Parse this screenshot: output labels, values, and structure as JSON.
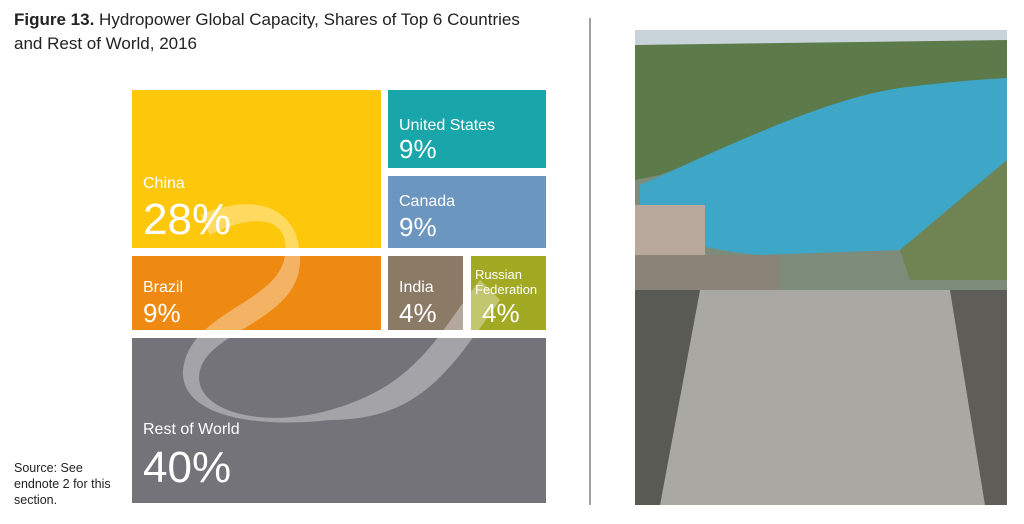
{
  "chart_data": {
    "type": "treemap",
    "figure_label": "Figure 13.",
    "title": "Hydropower Global Capacity, Shares of Top 6 Countries and Rest of World, 2016",
    "categories": [
      "China",
      "United States",
      "Canada",
      "Brazil",
      "India",
      "Russian Federation",
      "Rest of World"
    ],
    "values": [
      28,
      9,
      9,
      9,
      4,
      4,
      40
    ],
    "value_labels": [
      "28%",
      "9%",
      "9%",
      "9%",
      "4%",
      "4%",
      "40%"
    ],
    "colors": [
      "#fdc70c",
      "#19a6ab",
      "#6a96bf",
      "#ee8a12",
      "#8b7a66",
      "#a2a923",
      "#74737a"
    ],
    "source": "Source: See endnote 2 for this section."
  }
}
